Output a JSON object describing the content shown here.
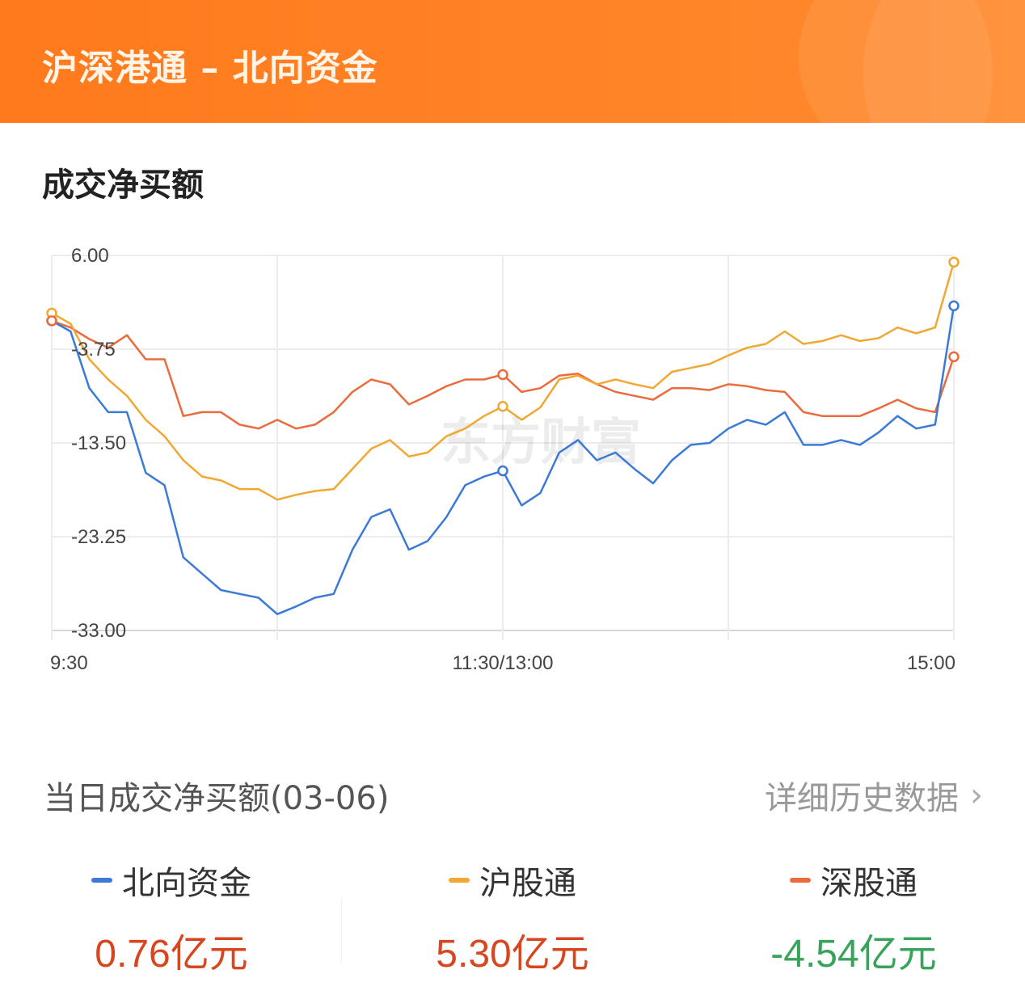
{
  "header": {
    "title": "沪深港通 – 北向资金"
  },
  "section_title": "成交净买额",
  "watermark": "东方财富",
  "daily": {
    "label": "当日成交净买额(03-06)",
    "more_label": "详细历史数据",
    "more_icon": "chevron-right-icon",
    "items": [
      {
        "name": "北向资金",
        "value": "0.76亿元",
        "color": "#3b7ad6",
        "value_color": "#d8461f"
      },
      {
        "name": "沪股通",
        "value": "5.30亿元",
        "color": "#f0a833",
        "value_color": "#d8461f"
      },
      {
        "name": "深股通",
        "value": "-4.54亿元",
        "color": "#ea6c3c",
        "value_color": "#3aa35b"
      }
    ]
  },
  "chart_data": {
    "type": "line",
    "title": "",
    "xlabel": "",
    "ylabel": "",
    "ylim": [
      -33.0,
      6.0
    ],
    "grid": true,
    "y_ticks": [
      "6.00",
      "-3.75",
      "-13.50",
      "-23.25",
      "-33.00"
    ],
    "x_tick_labels": [
      "9:30",
      "11:30/13:00",
      "15:00"
    ],
    "x": [
      "09:30",
      "09:35",
      "09:40",
      "09:45",
      "09:50",
      "09:55",
      "10:00",
      "10:05",
      "10:10",
      "10:15",
      "10:20",
      "10:25",
      "10:30",
      "10:35",
      "10:40",
      "10:45",
      "10:50",
      "10:55",
      "11:00",
      "11:05",
      "11:10",
      "11:15",
      "11:20",
      "11:25",
      "11:30",
      "13:05",
      "13:10",
      "13:15",
      "13:20",
      "13:25",
      "13:30",
      "13:35",
      "13:40",
      "13:45",
      "13:50",
      "13:55",
      "14:00",
      "14:05",
      "14:10",
      "14:15",
      "14:20",
      "14:25",
      "14:30",
      "14:35",
      "14:40",
      "14:45",
      "14:50",
      "14:55",
      "15:00"
    ],
    "series": [
      {
        "name": "北向资金",
        "color": "#3b7ad6",
        "values": [
          -0.8,
          -1.9,
          -7.8,
          -10.3,
          -10.3,
          -16.6,
          -17.9,
          -25.4,
          -27.1,
          -28.8,
          -29.2,
          -29.6,
          -31.3,
          -30.5,
          -29.6,
          -29.2,
          -24.6,
          -21.2,
          -20.4,
          -24.6,
          -23.7,
          -21.2,
          -17.9,
          -17.0,
          -16.4,
          -20.0,
          -18.7,
          -14.5,
          -13.2,
          -15.3,
          -14.5,
          -16.2,
          -17.7,
          -15.3,
          -13.7,
          -13.5,
          -12.0,
          -11.1,
          -11.6,
          -10.3,
          -13.7,
          -13.7,
          -13.2,
          -13.7,
          -12.4,
          -10.7,
          -12.0,
          -11.6,
          0.76
        ]
      },
      {
        "name": "沪股通",
        "color": "#f0a833",
        "values": [
          0.0,
          -1.1,
          -4.8,
          -6.9,
          -8.6,
          -11.1,
          -12.8,
          -15.3,
          -17.0,
          -17.4,
          -18.3,
          -18.3,
          -19.4,
          -18.9,
          -18.5,
          -18.3,
          -16.2,
          -14.1,
          -13.2,
          -14.9,
          -14.5,
          -12.8,
          -12.0,
          -10.7,
          -9.7,
          -11.1,
          -9.8,
          -6.9,
          -6.5,
          -7.4,
          -6.9,
          -7.4,
          -7.8,
          -6.1,
          -5.7,
          -5.3,
          -4.4,
          -3.6,
          -3.2,
          -1.9,
          -3.2,
          -2.9,
          -2.3,
          -2.9,
          -2.6,
          -1.5,
          -2.1,
          -1.5,
          5.3
        ]
      },
      {
        "name": "深股通",
        "color": "#ea6c3c",
        "values": [
          -0.8,
          -1.5,
          -2.7,
          -3.6,
          -2.3,
          -4.8,
          -4.8,
          -10.7,
          -10.3,
          -10.3,
          -11.6,
          -12.0,
          -11.1,
          -12.0,
          -11.6,
          -10.3,
          -8.2,
          -6.9,
          -7.4,
          -9.5,
          -8.6,
          -7.6,
          -6.9,
          -6.9,
          -6.4,
          -8.2,
          -7.8,
          -6.5,
          -6.3,
          -7.4,
          -8.2,
          -8.6,
          -9.0,
          -7.8,
          -7.8,
          -8.0,
          -7.4,
          -7.6,
          -8.0,
          -8.2,
          -10.3,
          -10.7,
          -10.7,
          -10.7,
          -9.9,
          -9.0,
          -9.9,
          -10.3,
          -4.54
        ]
      }
    ]
  }
}
